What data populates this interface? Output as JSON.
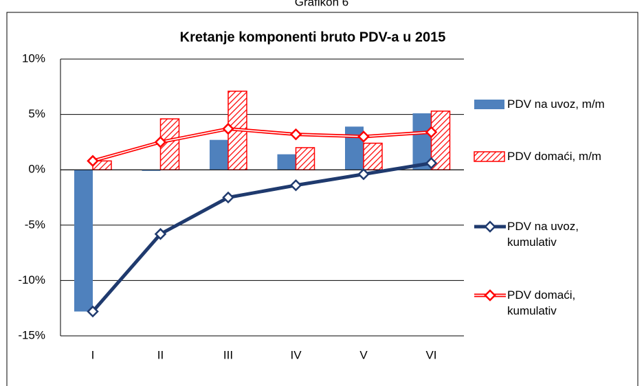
{
  "header": "Grafikon 6",
  "chart_data": {
    "type": "bar-line",
    "title": "Kretanje komponenti bruto PDV-a u 2015",
    "categories": [
      "I",
      "II",
      "III",
      "IV",
      "V",
      "VI"
    ],
    "series": [
      {
        "name": "PDV na uvoz, m/m",
        "kind": "bar",
        "color": "#4f81bd",
        "values": [
          -12.8,
          -0.1,
          2.7,
          1.4,
          3.9,
          5.1
        ]
      },
      {
        "name": "PDV domaći, m/m",
        "kind": "bar",
        "color": "#ff0000",
        "values": [
          0.8,
          4.6,
          7.1,
          2.0,
          2.4,
          5.3
        ]
      },
      {
        "name": "PDV na uvoz, kumulativ",
        "kind": "line",
        "color": "#1f3a6e",
        "values": [
          -12.8,
          -5.8,
          -2.5,
          -1.4,
          -0.4,
          0.6
        ]
      },
      {
        "name": "PDV domaći, kumulativ",
        "kind": "line",
        "color": "#ff0000",
        "values": [
          0.8,
          2.5,
          3.7,
          3.2,
          3.0,
          3.4
        ]
      }
    ],
    "ylim": [
      -15,
      10
    ],
    "yticks": [
      {
        "value": -15,
        "label": "-15%"
      },
      {
        "value": -10,
        "label": "-10%"
      },
      {
        "value": -5,
        "label": "-5%"
      },
      {
        "value": 0,
        "label": "0%"
      },
      {
        "value": 5,
        "label": "5%"
      },
      {
        "value": 10,
        "label": "10%"
      }
    ],
    "grid": true,
    "legend": "right"
  }
}
